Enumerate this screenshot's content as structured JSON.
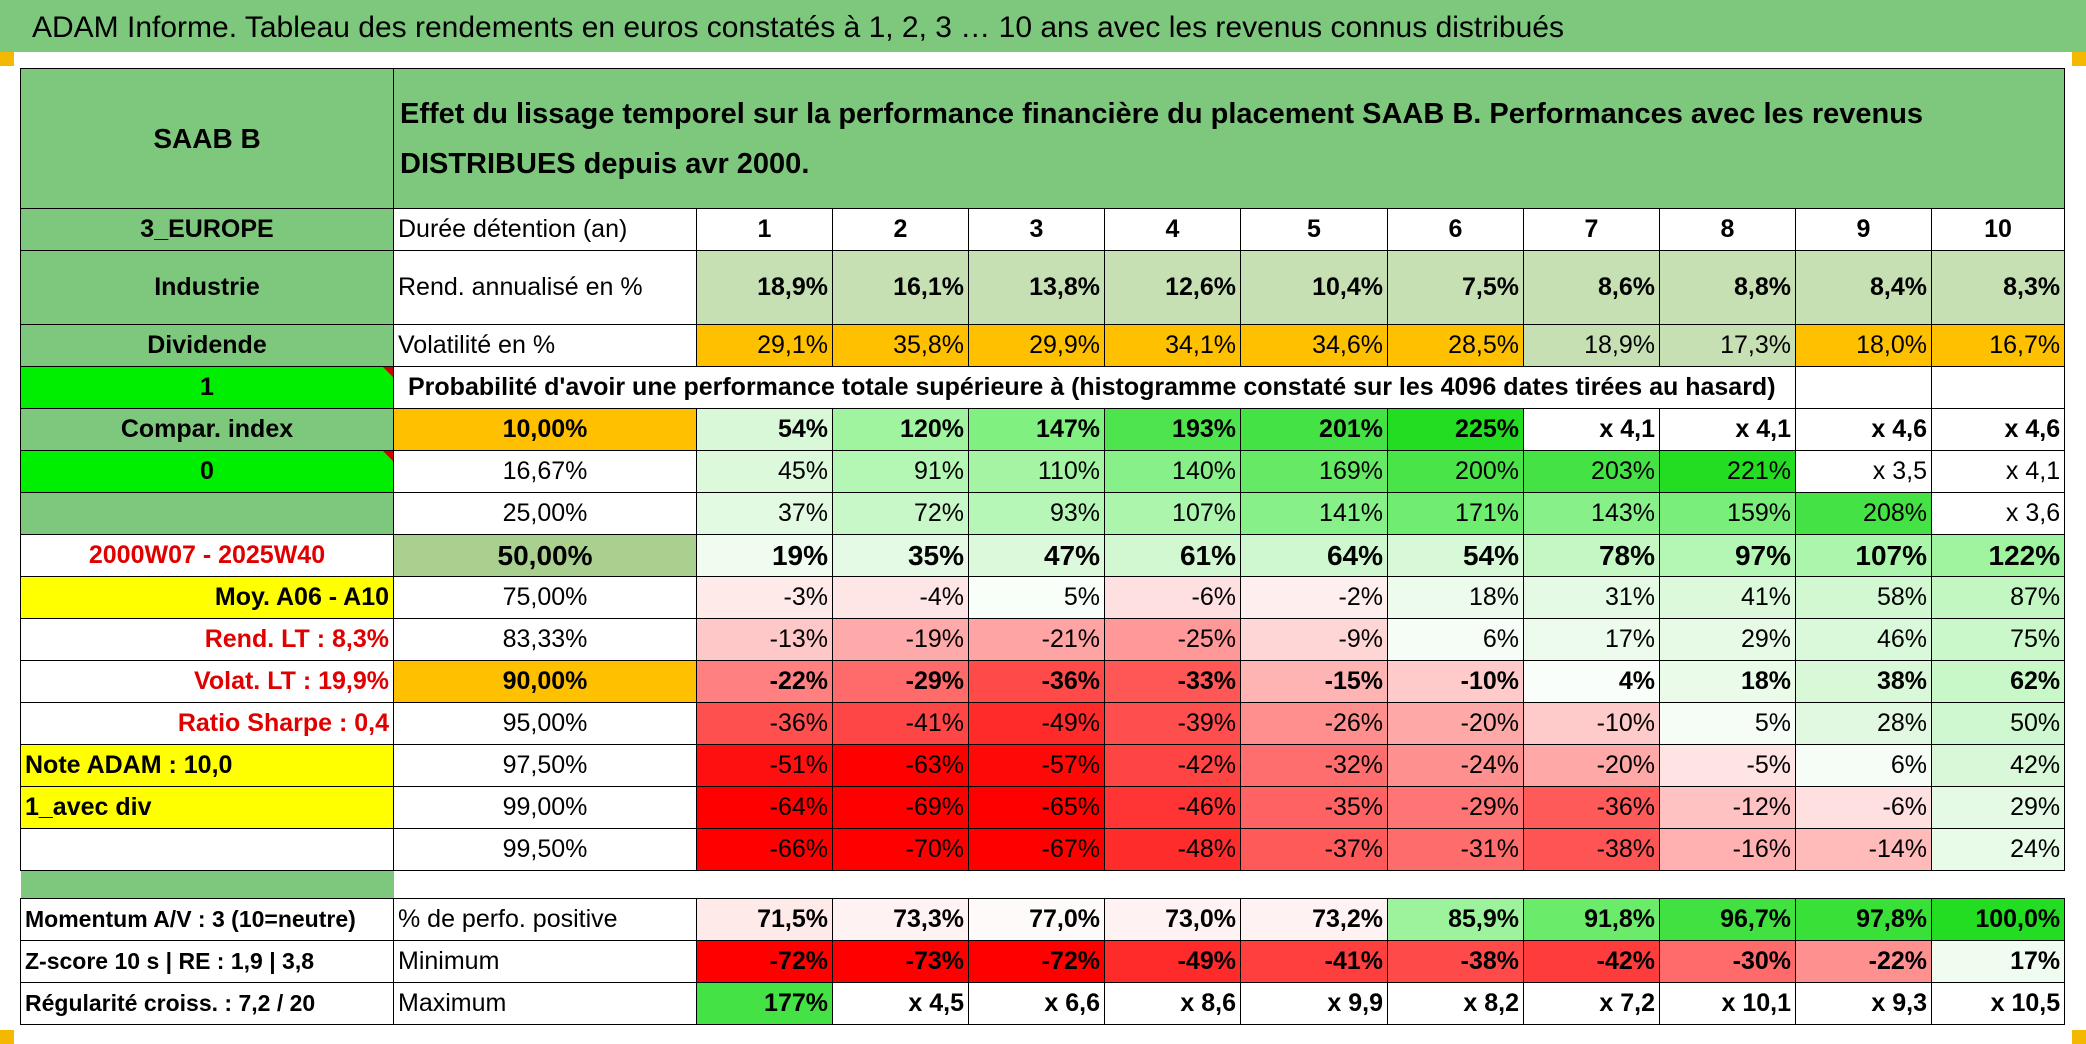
{
  "header": {
    "title": "ADAM Informe. Tableau des rendements en euros constatés à 1, 2, 3 … 10 ans avec les revenus connus distribués"
  },
  "colors": {
    "green_band": "#7ec87e",
    "orange": "#ffc000",
    "yellow": "#ffff00",
    "bright_green": "#00ee00",
    "red_text": "#e00000"
  },
  "left": {
    "name": "SAAB B",
    "region": "3_EUROPE",
    "sector": "Industrie",
    "dividend": "Dividende",
    "field1": "1",
    "compar_index": "Compar. index",
    "field2": "0",
    "period": "2000W07 - 2025W40",
    "moy": "Moy. A06 - A10",
    "rend_lt": "Rend. LT :   8,3%",
    "volat_lt": "Volat. LT :   19,9%",
    "sharpe": "Ratio Sharpe :    0,4",
    "note": "Note ADAM : 10,0",
    "avec_div": "1_avec div",
    "momentum": "Momentum A/V : 3 (10=neutre)",
    "zscore": "Z-score 10 s | RE : 1,9 | 3,8",
    "regularite": "Régularité croiss. : 7,2 / 20"
  },
  "desc": "Effet du lissage temporel sur la performance financière du placement SAAB B. Performances avec les revenus DISTRIBUES depuis avr 2000.",
  "labels": {
    "duree": "Durée détention (an)",
    "rend": "Rend. annualisé en %",
    "volat": "Volatilité en %",
    "proba": "Probabilité d'avoir une performance totale supérieure à (histogramme constaté sur les 4096 dates tirées au hasard)",
    "perfo_pos": "% de perfo. positive",
    "minimum": "Minimum",
    "maximum": "Maximum"
  },
  "years": [
    "1",
    "2",
    "3",
    "4",
    "5",
    "6",
    "7",
    "8",
    "9",
    "10"
  ],
  "rend": [
    "18,9%",
    "16,1%",
    "13,8%",
    "12,6%",
    "10,4%",
    "7,5%",
    "8,6%",
    "8,8%",
    "8,4%",
    "8,3%"
  ],
  "volat": [
    "29,1%",
    "35,8%",
    "29,9%",
    "34,1%",
    "34,6%",
    "28,5%",
    "18,9%",
    "17,3%",
    "18,0%",
    "16,7%"
  ],
  "prob_rows": [
    {
      "pct": "10,00%",
      "values": [
        "54%",
        "120%",
        "147%",
        "193%",
        "201%",
        "225%",
        "x 4,1",
        "x 4,1",
        "x 4,6",
        "x 4,6"
      ]
    },
    {
      "pct": "16,67%",
      "values": [
        "45%",
        "91%",
        "110%",
        "140%",
        "169%",
        "200%",
        "203%",
        "221%",
        "x 3,5",
        "x 4,1"
      ]
    },
    {
      "pct": "25,00%",
      "values": [
        "37%",
        "72%",
        "93%",
        "107%",
        "141%",
        "171%",
        "143%",
        "159%",
        "208%",
        "x 3,6"
      ]
    },
    {
      "pct": "50,00%",
      "values": [
        "19%",
        "35%",
        "47%",
        "61%",
        "64%",
        "54%",
        "78%",
        "97%",
        "107%",
        "122%"
      ]
    },
    {
      "pct": "75,00%",
      "values": [
        "-3%",
        "-4%",
        "5%",
        "-6%",
        "-2%",
        "18%",
        "31%",
        "41%",
        "58%",
        "87%"
      ]
    },
    {
      "pct": "83,33%",
      "values": [
        "-13%",
        "-19%",
        "-21%",
        "-25%",
        "-9%",
        "6%",
        "17%",
        "29%",
        "46%",
        "75%"
      ]
    },
    {
      "pct": "90,00%",
      "values": [
        "-22%",
        "-29%",
        "-36%",
        "-33%",
        "-15%",
        "-10%",
        "4%",
        "18%",
        "38%",
        "62%"
      ]
    },
    {
      "pct": "95,00%",
      "values": [
        "-36%",
        "-41%",
        "-49%",
        "-39%",
        "-26%",
        "-20%",
        "-10%",
        "5%",
        "28%",
        "50%"
      ]
    },
    {
      "pct": "97,50%",
      "values": [
        "-51%",
        "-63%",
        "-57%",
        "-42%",
        "-32%",
        "-24%",
        "-20%",
        "-5%",
        "6%",
        "42%"
      ]
    },
    {
      "pct": "99,00%",
      "values": [
        "-64%",
        "-69%",
        "-65%",
        "-46%",
        "-35%",
        "-29%",
        "-36%",
        "-12%",
        "-6%",
        "29%"
      ]
    },
    {
      "pct": "99,50%",
      "values": [
        "-66%",
        "-70%",
        "-67%",
        "-48%",
        "-37%",
        "-31%",
        "-38%",
        "-16%",
        "-14%",
        "24%"
      ]
    }
  ],
  "perfo_pos": [
    "71,5%",
    "73,3%",
    "77,0%",
    "73,0%",
    "73,2%",
    "85,9%",
    "91,8%",
    "96,7%",
    "97,8%",
    "100,0%"
  ],
  "minimum": [
    "-72%",
    "-73%",
    "-72%",
    "-49%",
    "-41%",
    "-38%",
    "-42%",
    "-30%",
    "-22%",
    "17%"
  ],
  "maximum": [
    "177%",
    "x 4,5",
    "x 6,6",
    "x 8,6",
    "x 9,9",
    "x 8,2",
    "x 7,2",
    "x 10,1",
    "x 9,3",
    "x 10,5"
  ]
}
